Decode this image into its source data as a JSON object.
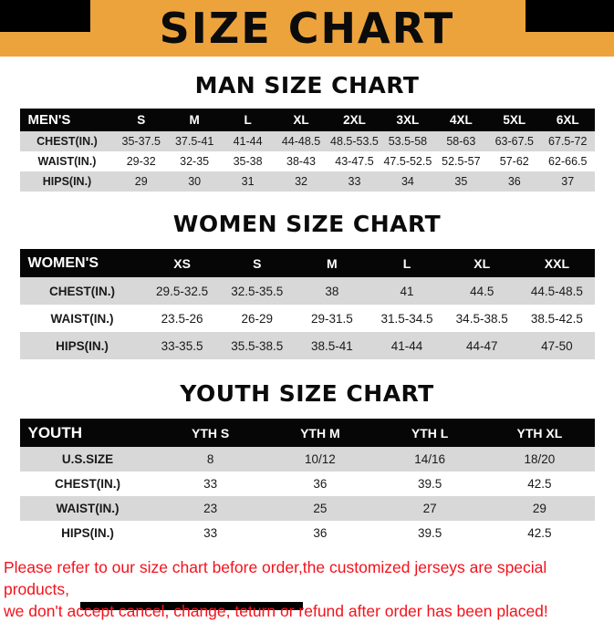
{
  "banner": {
    "title": "SIZE CHART",
    "bg_color": "#EDA33C",
    "corner_color": "#000000"
  },
  "colors": {
    "row_stripe": "#d8d8d8",
    "table_header_bg": "#060606",
    "footer_text": "#f3121c"
  },
  "sections": [
    {
      "heading": "MAN SIZE CHART",
      "table": {
        "header": [
          "MEN'S",
          "S",
          "M",
          "L",
          "XL",
          "2XL",
          "3XL",
          "4XL",
          "5XL",
          "6XL"
        ],
        "rows": [
          [
            "CHEST(IN.)",
            "35-37.5",
            "37.5-41",
            "41-44",
            "44-48.5",
            "48.5-53.5",
            "53.5-58",
            "58-63",
            "63-67.5",
            "67.5-72"
          ],
          [
            "WAIST(IN.)",
            "29-32",
            "32-35",
            "35-38",
            "38-43",
            "43-47.5",
            "47.5-52.5",
            "52.5-57",
            "57-62",
            "62-66.5"
          ],
          [
            "HIPS(IN.)",
            "29",
            "30",
            "31",
            "32",
            "33",
            "34",
            "35",
            "36",
            "37"
          ]
        ]
      }
    },
    {
      "heading": "WOMEN SIZE CHART",
      "table": {
        "header": [
          "WOMEN'S",
          "XS",
          "S",
          "M",
          "L",
          "XL",
          "XXL"
        ],
        "rows": [
          [
            "CHEST(IN.)",
            "29.5-32.5",
            "32.5-35.5",
            "38",
            "41",
            "44.5",
            "44.5-48.5"
          ],
          [
            "WAIST(IN.)",
            "23.5-26",
            "26-29",
            "29-31.5",
            "31.5-34.5",
            "34.5-38.5",
            "38.5-42.5"
          ],
          [
            "HIPS(IN.)",
            "33-35.5",
            "35.5-38.5",
            "38.5-41",
            "41-44",
            "44-47",
            "47-50"
          ]
        ]
      }
    },
    {
      "heading": "YOUTH SIZE CHART",
      "table": {
        "header": [
          "YOUTH",
          "YTH S",
          "YTH M",
          "YTH L",
          "YTH XL"
        ],
        "rows": [
          [
            "U.S.SIZE",
            "8",
            "10/12",
            "14/16",
            "18/20"
          ],
          [
            "CHEST(IN.)",
            "33",
            "36",
            "39.5",
            "42.5"
          ],
          [
            "WAIST(IN.)",
            "23",
            "25",
            "27",
            "29"
          ],
          [
            "HIPS(IN.)",
            "33",
            "36",
            "39.5",
            "42.5"
          ]
        ]
      }
    }
  ],
  "footer": {
    "lines": [
      "Please refer to our size chart before order,the customized jerseys are special products,",
      "we don't accept cancel, change, teturn or refund after order has been placed!"
    ]
  }
}
